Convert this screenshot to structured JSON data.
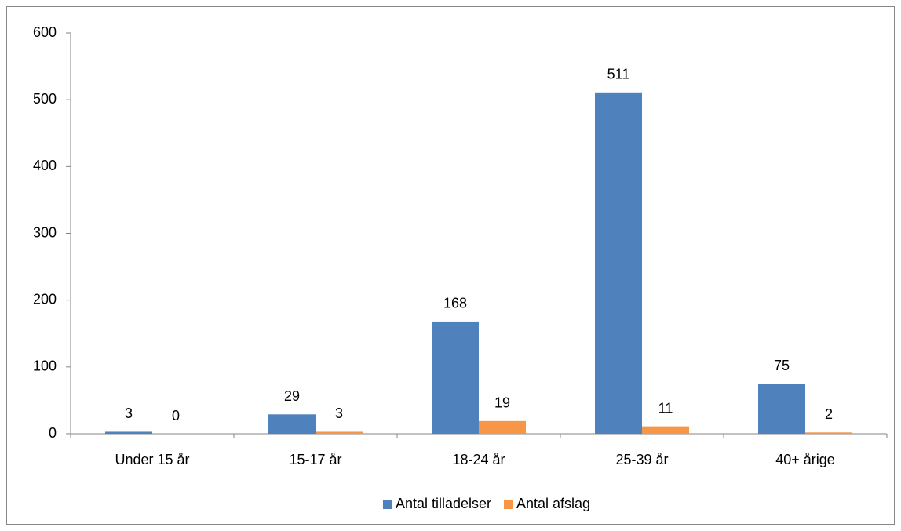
{
  "chart_data": {
    "type": "bar",
    "categories": [
      "Under 15 år",
      "15-17 år",
      "18-24 år",
      "25-39 år",
      "40+ årige"
    ],
    "series": [
      {
        "name": "Antal tilladelser",
        "color": "#4f81bd",
        "values": [
          3,
          29,
          168,
          511,
          75
        ]
      },
      {
        "name": "Antal afslag",
        "color": "#f79646",
        "values": [
          0,
          3,
          19,
          11,
          2
        ]
      }
    ],
    "ylim": [
      0,
      600
    ],
    "yticks": [
      0,
      100,
      200,
      300,
      400,
      500,
      600
    ],
    "grid": false,
    "legend": "bottom"
  }
}
